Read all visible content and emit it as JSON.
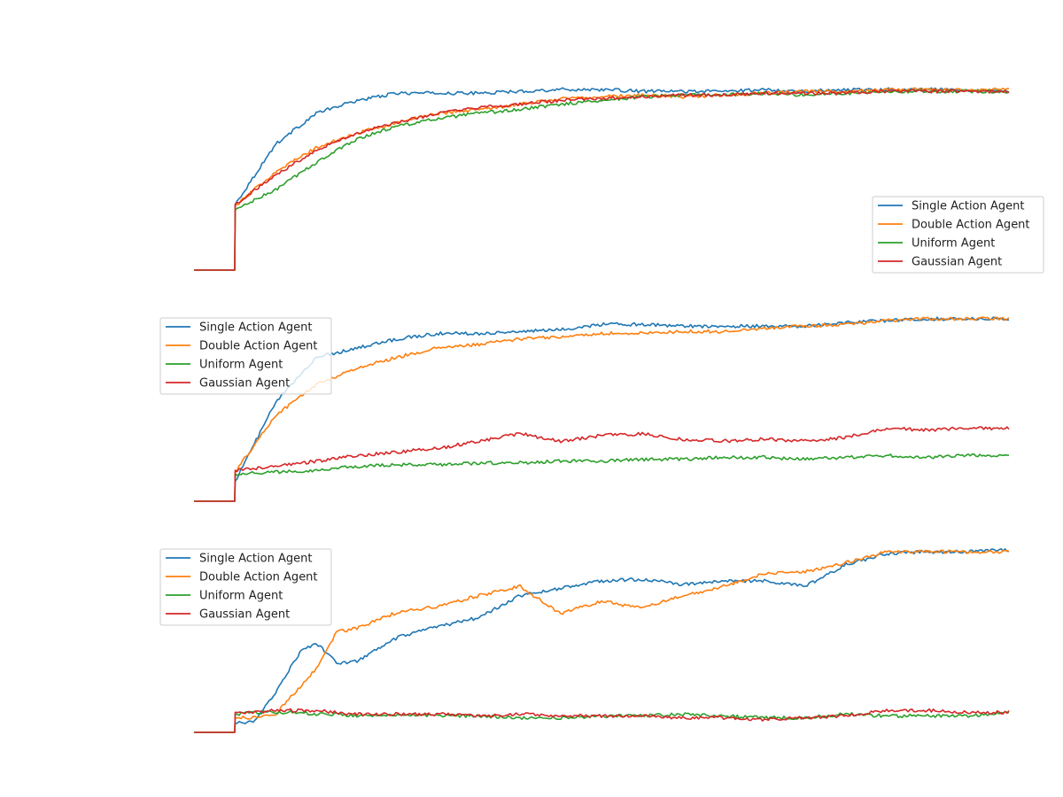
{
  "chart_data": [
    {
      "type": "line",
      "title": "",
      "xlabel": "",
      "ylabel": "",
      "axes_visible": false,
      "grid": false,
      "legend_placement": "lower-right-outside",
      "x": [
        0,
        50,
        50.5,
        100,
        150,
        200,
        250,
        300,
        350,
        400,
        450,
        500,
        550,
        600,
        650,
        700,
        750,
        800,
        850,
        900,
        950,
        1000
      ],
      "xlim": [
        0,
        1000
      ],
      "ylim": [
        0,
        1
      ],
      "series": [
        {
          "name": "Single Action Agent",
          "color": "#1f77b4",
          "values": [
            0,
            0,
            0.36,
            0.69,
            0.86,
            0.93,
            0.97,
            0.97,
            0.97,
            0.98,
            0.99,
            0.99,
            0.98,
            0.98,
            0.98,
            0.99,
            0.98,
            0.99,
            0.99,
            0.99,
            0.99,
            0.98
          ]
        },
        {
          "name": "Double Action Agent",
          "color": "#ff7f0e",
          "values": [
            0,
            0,
            0.35,
            0.54,
            0.67,
            0.75,
            0.81,
            0.86,
            0.88,
            0.91,
            0.94,
            0.95,
            0.96,
            0.95,
            0.96,
            0.97,
            0.98,
            0.98,
            0.99,
            0.99,
            0.99,
            0.99
          ]
        },
        {
          "name": "Uniform Agent",
          "color": "#2ca02c",
          "values": [
            0,
            0,
            0.33,
            0.44,
            0.59,
            0.72,
            0.79,
            0.83,
            0.86,
            0.88,
            0.91,
            0.93,
            0.95,
            0.96,
            0.96,
            0.97,
            0.96,
            0.97,
            0.98,
            0.98,
            0.98,
            0.98
          ]
        },
        {
          "name": "Gaussian Agent",
          "color": "#d62728",
          "values": [
            0,
            0,
            0.36,
            0.52,
            0.66,
            0.75,
            0.81,
            0.86,
            0.89,
            0.91,
            0.93,
            0.94,
            0.95,
            0.96,
            0.96,
            0.97,
            0.97,
            0.97,
            0.98,
            0.98,
            0.98,
            0.98
          ]
        }
      ]
    },
    {
      "type": "line",
      "title": "",
      "xlabel": "",
      "ylabel": "",
      "axes_visible": false,
      "grid": false,
      "legend_placement": "upper-left",
      "x": [
        0,
        50,
        50.5,
        100,
        150,
        200,
        250,
        300,
        350,
        400,
        450,
        500,
        550,
        600,
        650,
        700,
        750,
        800,
        850,
        900,
        950,
        1000
      ],
      "xlim": [
        0,
        1000
      ],
      "ylim": [
        0,
        1
      ],
      "series": [
        {
          "name": "Single Action Agent",
          "color": "#1f77b4",
          "values": [
            0,
            0,
            0.11,
            0.54,
            0.79,
            0.84,
            0.89,
            0.92,
            0.92,
            0.93,
            0.94,
            0.97,
            0.97,
            0.96,
            0.96,
            0.96,
            0.96,
            0.98,
            0.99,
            1.0,
            1.0,
            1.0
          ]
        },
        {
          "name": "Double Action Agent",
          "color": "#ff7f0e",
          "values": [
            0,
            0,
            0.16,
            0.47,
            0.64,
            0.73,
            0.79,
            0.84,
            0.86,
            0.89,
            0.9,
            0.92,
            0.92,
            0.93,
            0.93,
            0.95,
            0.96,
            0.97,
            0.99,
            1.0,
            1.0,
            1.0
          ]
        },
        {
          "name": "Uniform Agent",
          "color": "#2ca02c",
          "values": [
            0,
            0,
            0.15,
            0.16,
            0.17,
            0.19,
            0.2,
            0.2,
            0.21,
            0.21,
            0.22,
            0.22,
            0.23,
            0.23,
            0.24,
            0.24,
            0.23,
            0.24,
            0.25,
            0.24,
            0.25,
            0.25
          ]
        },
        {
          "name": "Gaussian Agent",
          "color": "#d62728",
          "values": [
            0,
            0,
            0.17,
            0.19,
            0.22,
            0.25,
            0.27,
            0.29,
            0.33,
            0.37,
            0.33,
            0.36,
            0.37,
            0.34,
            0.33,
            0.34,
            0.33,
            0.35,
            0.4,
            0.39,
            0.4,
            0.4
          ]
        }
      ]
    },
    {
      "type": "line",
      "title": "",
      "xlabel": "",
      "ylabel": "",
      "axes_visible": false,
      "grid": false,
      "legend_placement": "upper-left",
      "x": [
        0,
        50,
        50.5,
        75,
        100,
        130,
        150,
        175,
        200,
        250,
        300,
        350,
        400,
        450,
        500,
        550,
        600,
        650,
        700,
        750,
        800,
        850,
        900,
        950,
        1000
      ],
      "xlim": [
        0,
        1000
      ],
      "ylim": [
        0,
        1
      ],
      "series": [
        {
          "name": "Single Action Agent",
          "color": "#1f77b4",
          "values": [
            0,
            0,
            0.05,
            0.06,
            0.22,
            0.44,
            0.49,
            0.38,
            0.39,
            0.52,
            0.58,
            0.63,
            0.75,
            0.79,
            0.83,
            0.84,
            0.81,
            0.83,
            0.83,
            0.8,
            0.92,
            0.98,
            0.99,
            0.99,
            1.0
          ]
        },
        {
          "name": "Double Action Agent",
          "color": "#ff7f0e",
          "values": [
            0,
            0,
            0.08,
            0.08,
            0.1,
            0.25,
            0.35,
            0.55,
            0.57,
            0.66,
            0.69,
            0.75,
            0.8,
            0.65,
            0.72,
            0.68,
            0.75,
            0.8,
            0.87,
            0.88,
            0.93,
            0.99,
            0.99,
            0.99,
            0.99
          ]
        },
        {
          "name": "Uniform Agent",
          "color": "#2ca02c",
          "values": [
            0,
            0,
            0.1,
            0.11,
            0.11,
            0.11,
            0.1,
            0.1,
            0.09,
            0.1,
            0.09,
            0.09,
            0.08,
            0.08,
            0.09,
            0.09,
            0.1,
            0.09,
            0.08,
            0.08,
            0.1,
            0.09,
            0.09,
            0.09,
            0.11
          ]
        },
        {
          "name": "Gaussian Agent",
          "color": "#d62728",
          "values": [
            0,
            0,
            0.11,
            0.11,
            0.12,
            0.12,
            0.12,
            0.11,
            0.1,
            0.1,
            0.1,
            0.09,
            0.1,
            0.09,
            0.09,
            0.09,
            0.08,
            0.08,
            0.07,
            0.08,
            0.09,
            0.12,
            0.12,
            0.11,
            0.11
          ]
        }
      ]
    }
  ]
}
